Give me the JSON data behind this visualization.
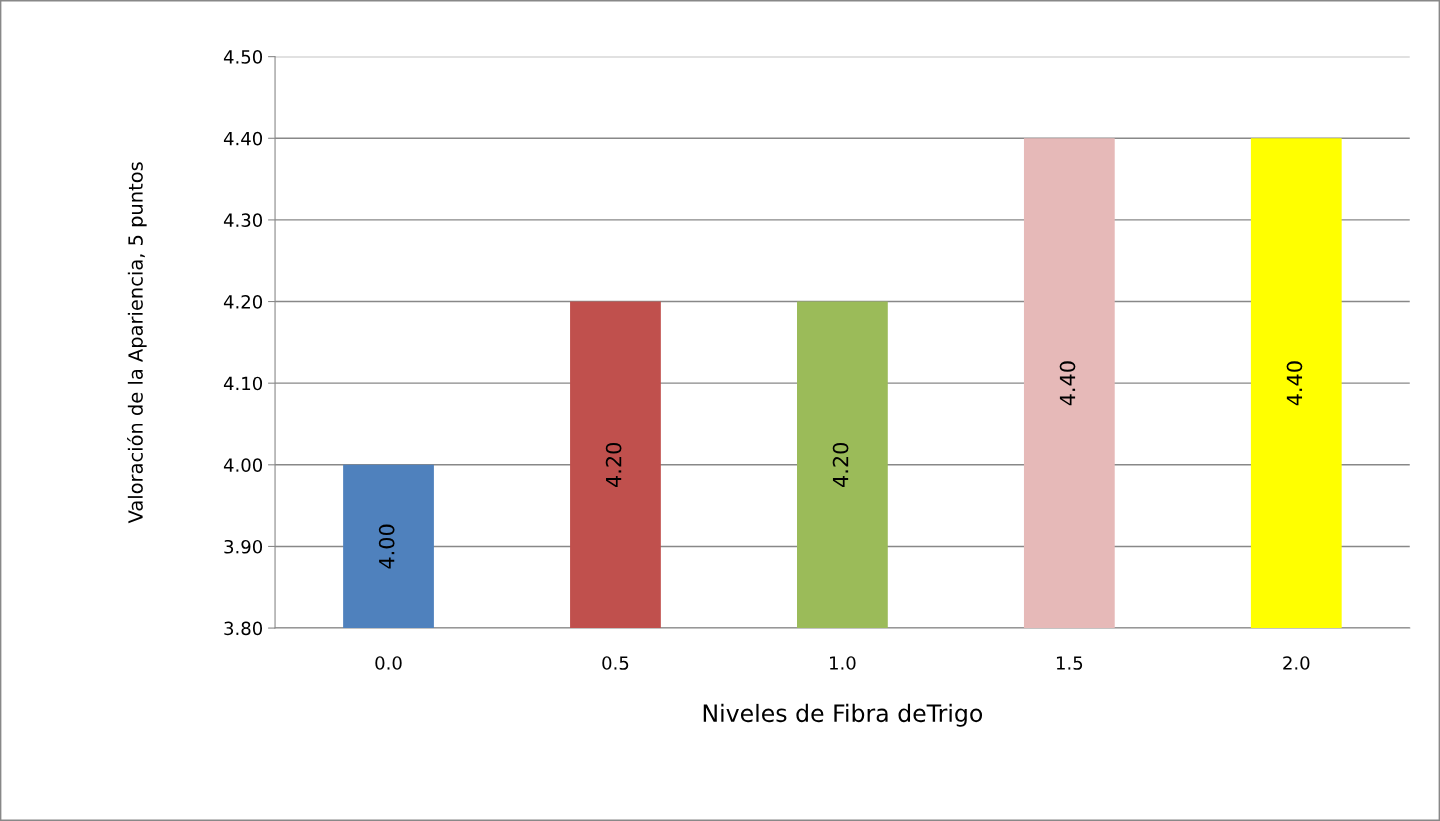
{
  "chart_data": {
    "type": "bar",
    "xlabel": "Niveles de Fibra deTrigo",
    "ylabel": "Valoración de la Apariencia, 5 puntos",
    "categories": [
      "0.0",
      "0.5",
      "1.0",
      "1.5",
      "2.0"
    ],
    "values": [
      4.0,
      4.2,
      4.2,
      4.4,
      4.4
    ],
    "colors": [
      "#4f81bd",
      "#c0504d",
      "#9bbb59",
      "#e6b9b8",
      "#ffff00"
    ],
    "value_labels": [
      "4.00",
      "4.20",
      "4.20",
      "4.40",
      "4.40"
    ],
    "ylim": [
      3.8,
      4.5
    ],
    "yticks": [
      {
        "value": 3.8,
        "label": "3.80"
      },
      {
        "value": 3.9,
        "label": "3.90"
      },
      {
        "value": 4.0,
        "label": "4.00"
      },
      {
        "value": 4.1,
        "label": "4.10"
      },
      {
        "value": 4.2,
        "label": "4.20"
      },
      {
        "value": 4.3,
        "label": "4.30"
      },
      {
        "value": 4.4,
        "label": "4.40"
      },
      {
        "value": 4.5,
        "label": "4.50"
      }
    ],
    "grid": "y",
    "legend": false
  }
}
